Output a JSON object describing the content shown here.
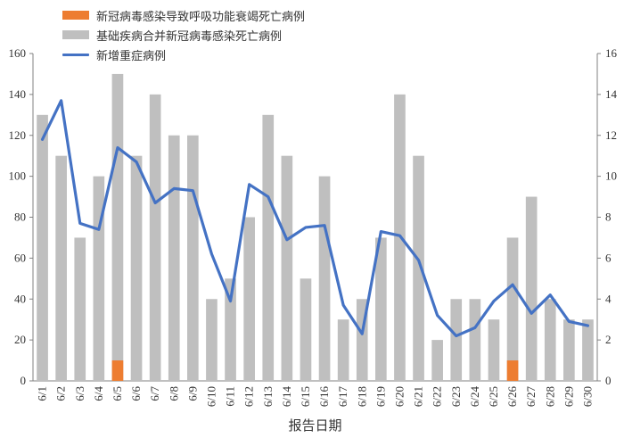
{
  "chart_data": {
    "type": "bar",
    "categories": [
      "6/1",
      "6/2",
      "6/3",
      "6/4",
      "6/5",
      "6/6",
      "6/7",
      "6/8",
      "6/9",
      "6/10",
      "6/11",
      "6/12",
      "6/13",
      "6/14",
      "6/15",
      "6/16",
      "6/17",
      "6/18",
      "6/19",
      "6/20",
      "6/21",
      "6/22",
      "6/23",
      "6/24",
      "6/25",
      "6/26",
      "6/27",
      "6/28",
      "6/29",
      "6/30"
    ],
    "series": [
      {
        "name": "基础疾病合并新冠病毒感染死亡病例",
        "type": "bar",
        "axis": "left",
        "color": "#bfbfbf",
        "values": [
          130,
          110,
          70,
          100,
          150,
          110,
          140,
          120,
          120,
          40,
          50,
          80,
          130,
          110,
          50,
          100,
          30,
          40,
          70,
          140,
          110,
          20,
          40,
          40,
          30,
          70,
          90,
          40,
          30,
          30
        ]
      },
      {
        "name": "新冠病毒感染导致呼吸功能衰竭死亡病例",
        "type": "bar",
        "axis": "left",
        "color": "#ed7d31",
        "values": [
          0,
          0,
          0,
          0,
          10,
          0,
          0,
          0,
          0,
          0,
          0,
          0,
          0,
          0,
          0,
          0,
          0,
          0,
          0,
          0,
          0,
          0,
          0,
          0,
          0,
          10,
          0,
          0,
          0,
          0
        ]
      },
      {
        "name": "新增重症病例",
        "type": "line",
        "axis": "right",
        "color": "#4472c4",
        "values": [
          11.8,
          13.7,
          7.7,
          7.4,
          11.4,
          10.7,
          8.7,
          9.4,
          9.3,
          6.2,
          3.9,
          9.6,
          9.0,
          6.9,
          7.5,
          7.6,
          3.7,
          2.3,
          7.3,
          7.1,
          5.9,
          3.2,
          2.2,
          2.6,
          3.9,
          4.7,
          3.3,
          4.2,
          2.9,
          2.7
        ]
      }
    ],
    "xlabel": "报告日期",
    "ylim_left": [
      0,
      160
    ],
    "ylim_right": [
      0,
      16
    ],
    "yticks_left": [
      "0",
      "20",
      "40",
      "60",
      "80",
      "100",
      "120",
      "140",
      "160"
    ],
    "yticks_right": [
      "0",
      "2",
      "4",
      "6",
      "8",
      "10",
      "12",
      "14",
      "16"
    ],
    "grid": false,
    "legend_position": "top-left"
  },
  "legend": {
    "items": [
      {
        "label": "新冠病毒感染导致呼吸功能衰竭死亡病例",
        "color": "#ed7d31",
        "kind": "bar"
      },
      {
        "label": "基础疾病合并新冠病毒感染死亡病例",
        "color": "#bfbfbf",
        "kind": "bar"
      },
      {
        "label": "新增重症病例",
        "color": "#4472c4",
        "kind": "line"
      }
    ]
  }
}
